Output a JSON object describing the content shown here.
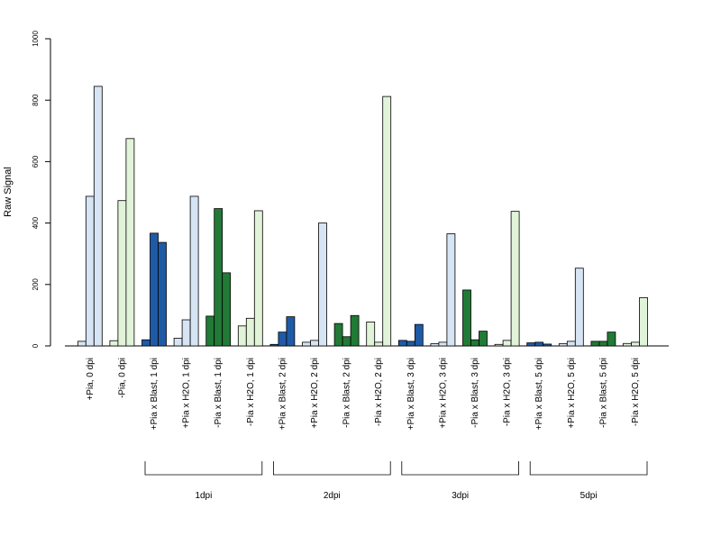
{
  "chart_data": {
    "type": "bar",
    "ylabel": "Raw Signal",
    "ylim": [
      0,
      1000
    ],
    "yticks": [
      0,
      200,
      400,
      600,
      800,
      1000
    ],
    "grid": false,
    "colors": {
      "blue_dark": "#1f5aa6",
      "blue_light": "#d6e4f4",
      "green_dark": "#217a36",
      "green_light": "#e1f3d8"
    },
    "categories": [
      {
        "label": "+Pia, 0 dpi",
        "values": [
          15,
          487,
          845
        ],
        "colors": [
          "blue_light",
          "blue_light",
          "blue_light"
        ]
      },
      {
        "label": "-Pia, 0 dpi",
        "values": [
          17,
          473,
          675
        ],
        "colors": [
          "green_light",
          "green_light",
          "green_light"
        ]
      },
      {
        "label": "+Pia x Blast, 1 dpi",
        "values": [
          20,
          367,
          337
        ],
        "colors": [
          "blue_dark",
          "blue_dark",
          "blue_dark"
        ]
      },
      {
        "label": "+Pia x H2O, 1 dpi",
        "values": [
          25,
          85,
          487
        ],
        "colors": [
          "blue_light",
          "blue_light",
          "blue_light"
        ]
      },
      {
        "label": "-Pia x Blast, 1 dpi",
        "values": [
          97,
          447,
          238
        ],
        "colors": [
          "green_dark",
          "green_dark",
          "green_dark"
        ]
      },
      {
        "label": "-Pia x H2O, 1 dpi",
        "values": [
          65,
          90,
          440
        ],
        "colors": [
          "green_light",
          "green_light",
          "green_light"
        ]
      },
      {
        "label": "+Pia x Blast, 2 dpi",
        "values": [
          5,
          45,
          95
        ],
        "colors": [
          "blue_dark",
          "blue_dark",
          "blue_dark"
        ]
      },
      {
        "label": "+Pia x H2O, 2 dpi",
        "values": [
          12,
          18,
          400
        ],
        "colors": [
          "blue_light",
          "blue_light",
          "blue_light"
        ]
      },
      {
        "label": "-Pia x Blast, 2 dpi",
        "values": [
          73,
          30,
          99
        ],
        "colors": [
          "green_dark",
          "green_dark",
          "green_dark"
        ]
      },
      {
        "label": "-Pia x H2O, 2 dpi",
        "values": [
          78,
          12,
          812
        ],
        "colors": [
          "green_light",
          "green_light",
          "green_light"
        ]
      },
      {
        "label": "+Pia x Blast, 3 dpi",
        "values": [
          18,
          15,
          70
        ],
        "colors": [
          "blue_dark",
          "blue_dark",
          "blue_dark"
        ]
      },
      {
        "label": "+Pia x H2O, 3 dpi",
        "values": [
          7,
          12,
          365
        ],
        "colors": [
          "blue_light",
          "blue_light",
          "blue_light"
        ]
      },
      {
        "label": "-Pia x Blast, 3 dpi",
        "values": [
          182,
          20,
          48
        ],
        "colors": [
          "green_dark",
          "green_dark",
          "green_dark"
        ]
      },
      {
        "label": "-Pia x H2O, 3 dpi",
        "values": [
          5,
          18,
          438
        ],
        "colors": [
          "green_light",
          "green_light",
          "green_light"
        ]
      },
      {
        "label": "+Pia x Blast, 5 dpi",
        "values": [
          10,
          12,
          6
        ],
        "colors": [
          "blue_dark",
          "blue_dark",
          "blue_dark"
        ]
      },
      {
        "label": "+Pia x H2O, 5 dpi",
        "values": [
          7,
          15,
          253
        ],
        "colors": [
          "blue_light",
          "blue_light",
          "blue_light"
        ]
      },
      {
        "label": "-Pia x Blast, 5 dpi",
        "values": [
          15,
          15,
          45
        ],
        "colors": [
          "green_dark",
          "green_dark",
          "green_dark"
        ]
      },
      {
        "label": "-Pia x H2O, 5 dpi",
        "values": [
          8,
          12,
          157
        ],
        "colors": [
          "green_light",
          "green_light",
          "green_light"
        ]
      }
    ],
    "groups": [
      {
        "label": "1dpi",
        "from": 2,
        "to": 5
      },
      {
        "label": "2dpi",
        "from": 6,
        "to": 9
      },
      {
        "label": "3dpi",
        "from": 10,
        "to": 13
      },
      {
        "label": "5dpi",
        "from": 14,
        "to": 17
      }
    ]
  }
}
